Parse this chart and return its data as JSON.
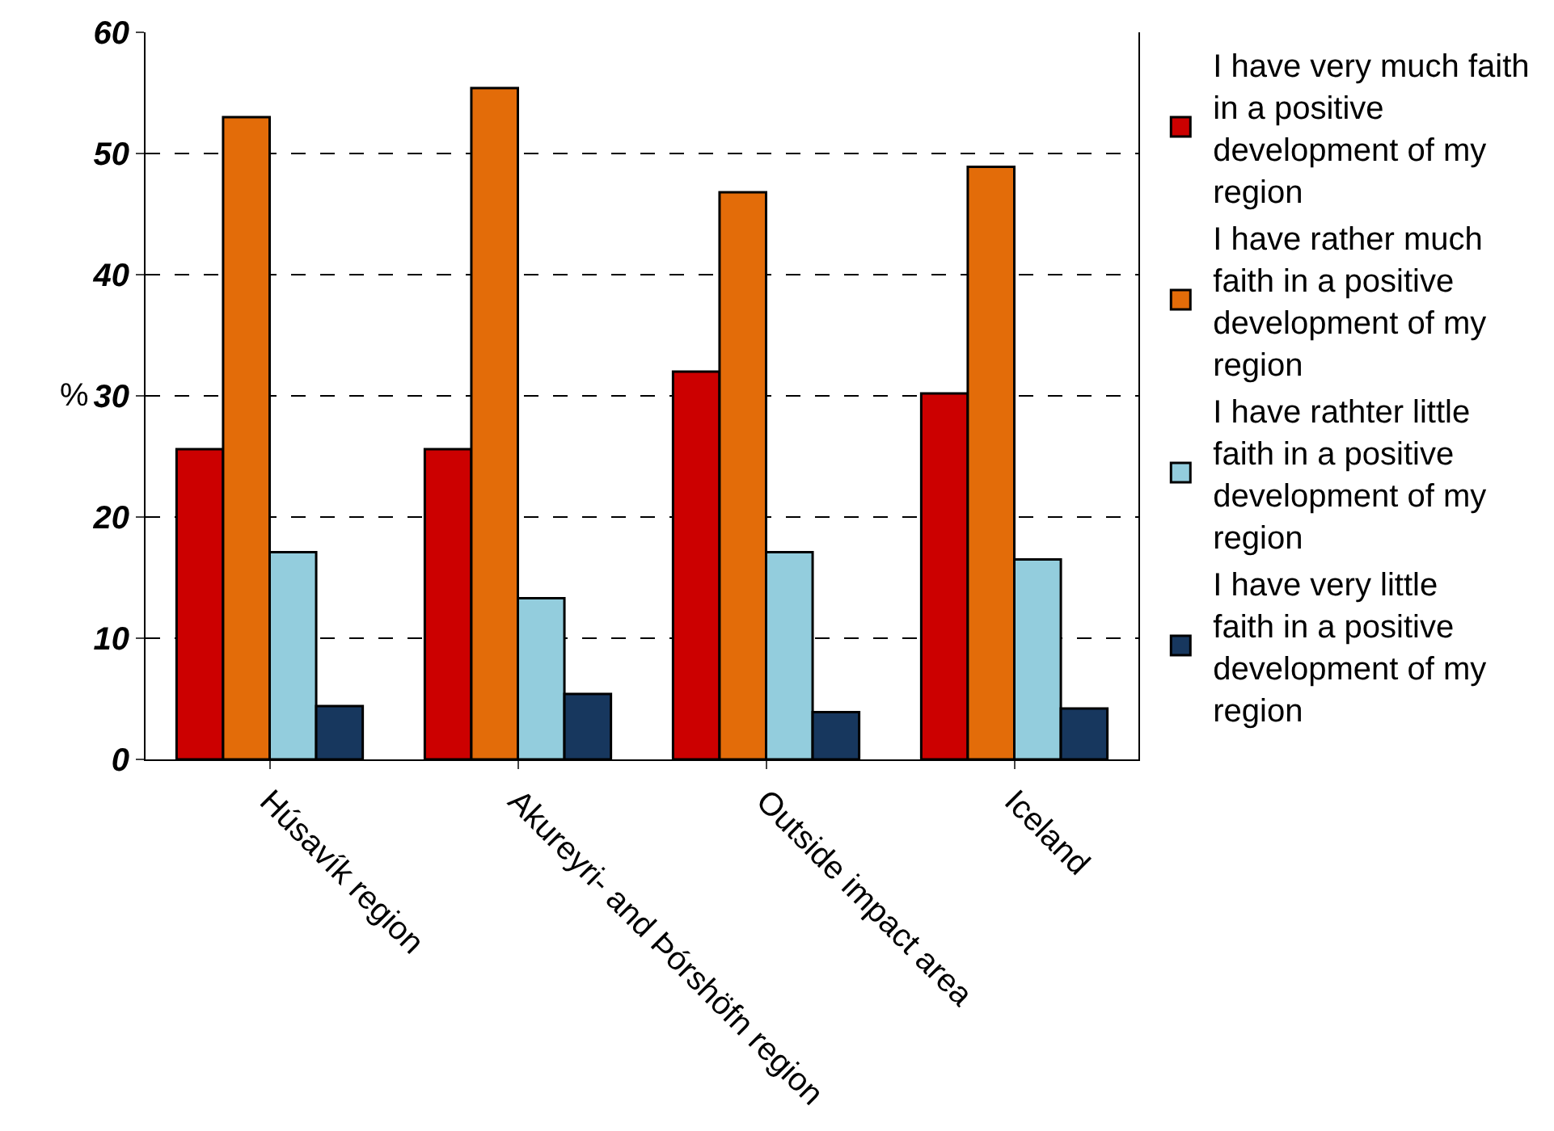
{
  "chart_data": {
    "type": "bar",
    "ylabel": "%",
    "categories": [
      "Húsavík region",
      "Akureyri- and Þórshöfn region",
      "Outside impact area",
      "Iceland"
    ],
    "series": [
      {
        "name": "I have very much faith in a positive development of my region",
        "color": "#cc0000",
        "values": [
          25.6,
          25.6,
          32.0,
          30.2
        ]
      },
      {
        "name": "I have rather much faith in a positive development of my region",
        "color": "#e36c09",
        "values": [
          53.0,
          55.4,
          46.8,
          48.9
        ]
      },
      {
        "name": "I have rathter little faith in a positive development of my region",
        "color": "#93cddd",
        "values": [
          17.1,
          13.3,
          17.1,
          16.5
        ]
      },
      {
        "name": "I have very little faith in a positive development of my region",
        "color": "#17375e",
        "values": [
          4.4,
          5.4,
          3.9,
          4.2
        ]
      }
    ],
    "ylim": [
      0,
      60
    ],
    "yticks": [
      0,
      10,
      20,
      30,
      40,
      50,
      60
    ],
    "grid": "y",
    "legend": "right"
  }
}
